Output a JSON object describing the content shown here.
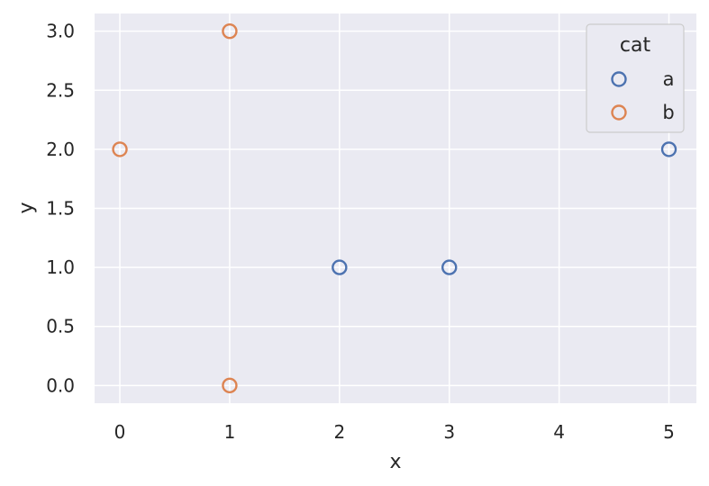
{
  "chart_data": {
    "type": "scatter",
    "title": "",
    "xlabel": "x",
    "ylabel": "y",
    "xlim": [
      -0.23,
      5.25
    ],
    "ylim": [
      -0.15,
      3.15
    ],
    "xticks": [
      0,
      1,
      2,
      3,
      4,
      5
    ],
    "yticks": [
      0.0,
      0.5,
      1.0,
      1.5,
      2.0,
      2.5,
      3.0
    ],
    "xtick_labels": [
      "0",
      "1",
      "2",
      "3",
      "4",
      "5"
    ],
    "ytick_labels": [
      "0.0",
      "0.5",
      "1.0",
      "1.5",
      "2.0",
      "2.5",
      "3.0"
    ],
    "grid": true,
    "background": "#EAEAF2",
    "grid_color": "#FFFFFF",
    "marker": "hollow-circle",
    "legend": {
      "title": "cat",
      "placement": "top-right"
    },
    "series": [
      {
        "name": "a",
        "color": "#4C72B0",
        "points": [
          {
            "x": 2,
            "y": 1.0
          },
          {
            "x": 3,
            "y": 1.0
          },
          {
            "x": 5,
            "y": 2.0
          }
        ]
      },
      {
        "name": "b",
        "color": "#DD8452",
        "points": [
          {
            "x": 0,
            "y": 2.0
          },
          {
            "x": 1,
            "y": 3.0
          },
          {
            "x": 1,
            "y": 0.0
          }
        ]
      }
    ]
  }
}
